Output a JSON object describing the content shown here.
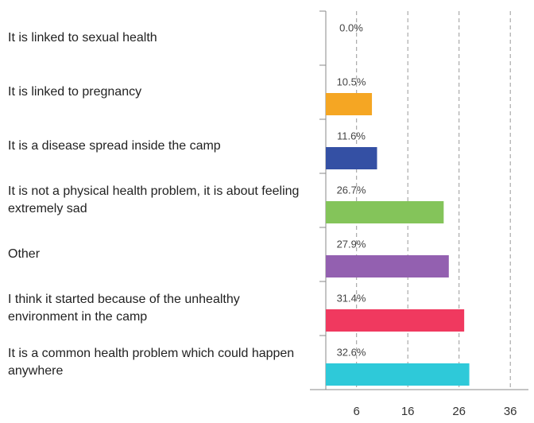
{
  "chart_data": {
    "type": "barh",
    "categories": [
      "It is linked to sexual health",
      "It is linked to pregnancy",
      "It is a disease spread inside the camp",
      "It is not a physical health problem, it is about feeling extremely sad",
      "Other",
      "I think it started because of the unhealthy environment in the camp",
      "It is a common health problem which could happen anywhere"
    ],
    "values": [
      0,
      9,
      10,
      23,
      24,
      27,
      28
    ],
    "value_labels": [
      "0.0%",
      "10.5%",
      "11.6%",
      "26.7%",
      "27.9%",
      "31.4%",
      "32.6%"
    ],
    "colors": [
      "#f5a623",
      "#f5a623",
      "#3450a4",
      "#84c45a",
      "#9360b0",
      "#f0395f",
      "#2ec9d9"
    ],
    "xlim": [
      0,
      40
    ],
    "xticks": [
      6,
      16,
      26,
      36
    ],
    "grid": true
  }
}
